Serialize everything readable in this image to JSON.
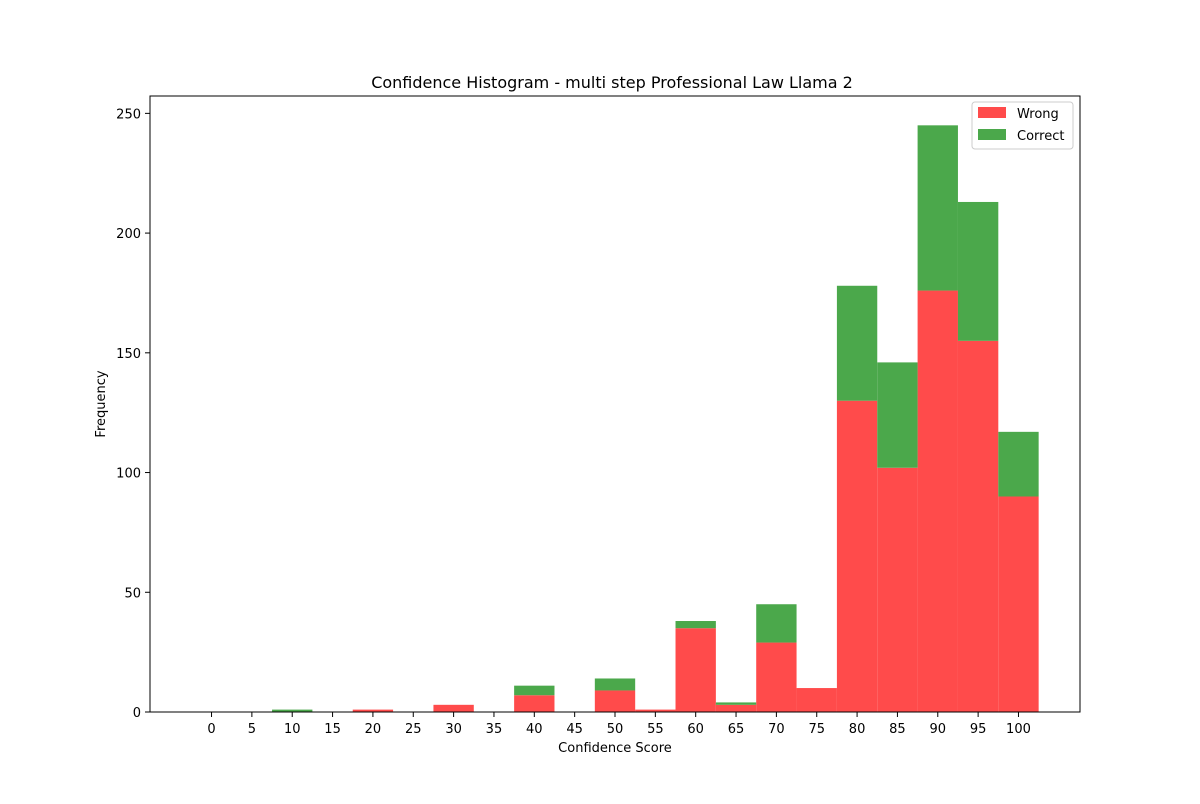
{
  "chart_data": {
    "type": "bar",
    "stacked": true,
    "title": "Confidence Histogram - multi step Professional Law Llama 2",
    "xlabel": "Confidence Score",
    "ylabel": "Frequency",
    "categories": [
      "0",
      "5",
      "10",
      "15",
      "20",
      "25",
      "30",
      "35",
      "40",
      "45",
      "50",
      "55",
      "60",
      "65",
      "70",
      "75",
      "80",
      "85",
      "90",
      "95",
      "100"
    ],
    "x": [
      0,
      5,
      10,
      15,
      20,
      25,
      30,
      35,
      40,
      45,
      50,
      55,
      60,
      65,
      70,
      75,
      80,
      85,
      90,
      95,
      100
    ],
    "series": [
      {
        "name": "Wrong",
        "color": "#ff4b4b",
        "values": [
          0,
          0,
          0,
          0,
          1,
          0,
          3,
          0,
          7,
          0,
          9,
          1,
          35,
          3,
          29,
          10,
          130,
          102,
          176,
          155,
          90
        ]
      },
      {
        "name": "Correct",
        "color": "#4ba84b",
        "values": [
          0,
          0,
          1,
          0,
          0,
          0,
          0,
          0,
          4,
          0,
          5,
          0,
          3,
          1,
          16,
          0,
          48,
          44,
          69,
          58,
          27
        ]
      }
    ],
    "xlim": [
      -7.625,
      107.625
    ],
    "ylim": [
      0,
      257.25
    ],
    "yticks": [
      0,
      50,
      100,
      150,
      200,
      250
    ],
    "legend": {
      "position": "top-right"
    },
    "grid": false
  }
}
